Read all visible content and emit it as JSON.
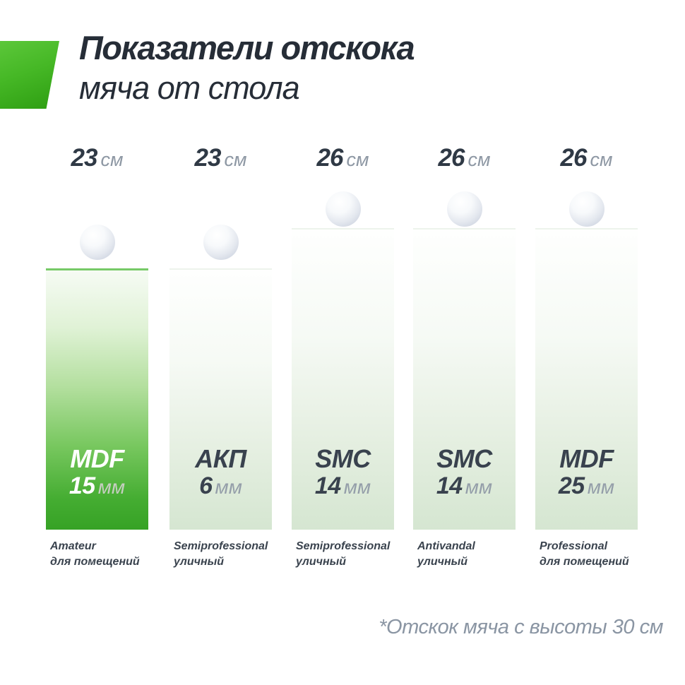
{
  "title": {
    "line1": "Показатели отскока",
    "line2": "мяча от стола"
  },
  "footnote": "*Отскок мяча с высоты 30 см",
  "columns": [
    {
      "bounce": "23",
      "bounce_unit": "см",
      "material": "MDF",
      "thickness": "15",
      "thickness_unit": "мм",
      "grade": "Amateur",
      "placement": "для помещений",
      "highlighted": true
    },
    {
      "bounce": "23",
      "bounce_unit": "см",
      "material": "АКП",
      "thickness": "6",
      "thickness_unit": "мм",
      "grade": "Semiprofessional",
      "placement": "уличный",
      "highlighted": false
    },
    {
      "bounce": "26",
      "bounce_unit": "см",
      "material": "SMC",
      "thickness": "14",
      "thickness_unit": "мм",
      "grade": "Semiprofessional",
      "placement": "уличный",
      "highlighted": false
    },
    {
      "bounce": "26",
      "bounce_unit": "см",
      "material": "SMC",
      "thickness": "14",
      "thickness_unit": "мм",
      "grade": "Antivandal",
      "placement": "уличный",
      "highlighted": false
    },
    {
      "bounce": "26",
      "bounce_unit": "см",
      "material": "MDF",
      "thickness": "25",
      "thickness_unit": "мм",
      "grade": "Professional",
      "placement": "для помещений",
      "highlighted": false
    }
  ],
  "chart_data": {
    "type": "bar",
    "title": "Показатели отскока мяча от стола",
    "note": "*Отскок мяча с высоты 30 см",
    "unit": "см",
    "categories": [
      "Amateur для помещений (MDF 15 мм)",
      "Semiprofessional уличный (АКП 6 мм)",
      "Semiprofessional уличный (SMC 14 мм)",
      "Antivandal уличный (SMC 14 мм)",
      "Professional для помещений (MDF 25 мм)"
    ],
    "values": [
      23,
      23,
      26,
      26,
      26
    ],
    "value_labels": [
      "23 см",
      "23 см",
      "26 см",
      "26 см",
      "26 см"
    ],
    "bar_inner_labels": [
      "MDF 15 мм",
      "АКП 6 мм",
      "SMC 14 мм",
      "SMC 14 мм",
      "MDF 25 мм"
    ],
    "highlighted_index": 0,
    "legend_position": "none",
    "grid": false,
    "drop_height_cm": 30
  },
  "colors": {
    "accent_green": "#36a225",
    "accent_green_light": "#5cc73a",
    "highlight_bar_border": "#77ca67",
    "light_bar_bottom": "#d5e6d1",
    "text_dark": "#2f3945",
    "text_gray": "#8e98a4",
    "ball_shade": "#c5cbd9"
  },
  "icons": {
    "ball": "white table-tennis ball sphere",
    "green_mark": "green parallelogram accent"
  }
}
